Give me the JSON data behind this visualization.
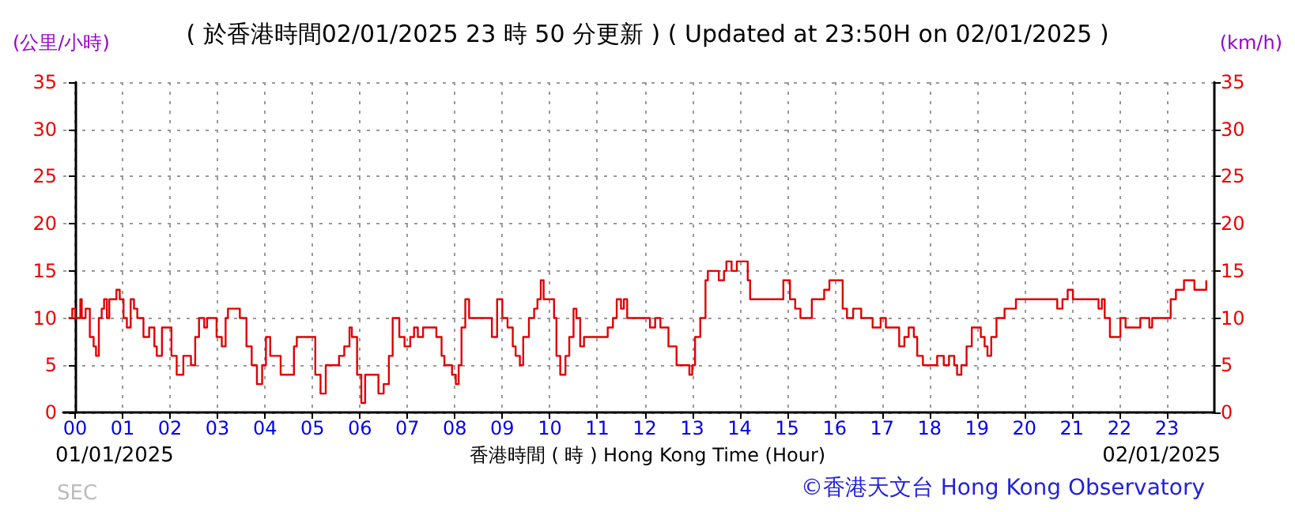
{
  "chart_data": {
    "type": "step",
    "title": "( 於香港時間02/01/2025 23 時 50 分更新 ) ( Updated at 23:50H on 02/01/2025 )",
    "xlabel": "香港時間 ( 時 ) Hong Kong Time (Hour)",
    "ylabel": "(公里/小時)",
    "y2label": "(km/h)",
    "annotations": [
      "01/01/2025",
      "02/01/2025",
      "SEC",
      "©香港天文台 Hong Kong Observatory"
    ],
    "series": [
      {
        "color": "#e00000",
        "x": [
          -0.14,
          -0.06,
          0,
          0.11,
          0.14,
          0.22,
          0.31,
          0.39,
          0.44,
          0.5,
          0.56,
          0.61,
          0.67,
          0.72,
          0.8,
          0.87,
          0.94,
          1.02,
          1.09,
          1.17,
          1.24,
          1.31,
          1.44,
          1.56,
          1.67,
          1.72,
          1.83,
          1.94,
          2.03,
          2.14,
          2.28,
          2.39,
          2.44,
          2.53,
          2.61,
          2.72,
          2.78,
          2.89,
          2.98,
          3.09,
          3.17,
          3.22,
          3.39,
          3.47,
          3.61,
          3.72,
          3.83,
          3.94,
          4.02,
          4.11,
          4.22,
          4.33,
          4.5,
          4.61,
          4.67,
          4.94,
          5.06,
          5.17,
          5.28,
          5.44,
          5.56,
          5.67,
          5.78,
          5.83,
          5.94,
          6.03,
          6.11,
          6.33,
          6.39,
          6.5,
          6.61,
          6.69,
          6.83,
          6.94,
          7.06,
          7.14,
          7.22,
          7.33,
          7.44,
          7.61,
          7.72,
          7.78,
          7.89,
          7.94,
          8.02,
          8.08,
          8.14,
          8.22,
          8.3,
          8.67,
          8.78,
          8.89,
          9,
          9.11,
          9.22,
          9.28,
          9.37,
          9.44,
          9.56,
          9.67,
          9.74,
          9.81,
          9.87,
          10.03,
          10.09,
          10.14,
          10.22,
          10.33,
          10.41,
          10.5,
          10.56,
          10.64,
          10.72,
          11.11,
          11.22,
          11.33,
          11.41,
          11.5,
          11.56,
          11.63,
          12,
          12.11,
          12.22,
          12.33,
          12.5,
          12.67,
          12.78,
          12.94,
          13,
          13.06,
          13.17,
          13.28,
          13.33,
          13.5,
          13.56,
          13.67,
          13.72,
          13.83,
          13.94,
          14.08,
          14.17,
          14.22,
          14.83,
          14.92,
          15.06,
          15.17,
          15.28,
          15.48,
          15.52,
          15.78,
          15.89,
          16.06,
          16.17,
          16.26,
          16.39,
          16.56,
          16.74,
          16.8,
          16.91,
          16.97,
          17.08,
          17.24,
          17.36,
          17.47,
          17.56,
          17.67,
          17.74,
          17.86,
          18.08,
          18.16,
          18.3,
          18.41,
          18.52,
          18.58,
          18.67,
          18.78,
          18.89,
          18.97,
          19.08,
          19.16,
          19.22,
          19.3,
          19.41,
          19.58,
          19.74,
          19.82,
          20.58,
          20.69,
          20.8,
          20.91,
          21.02,
          21.47,
          21.56,
          21.63,
          21.69,
          21.8,
          21.91,
          22.02,
          22.13,
          22.36,
          22.44,
          22.63,
          22.69,
          23.02,
          23.08,
          23.19,
          23.36,
          23.47,
          23.58,
          23.74,
          23.83
        ],
        "values": [
          10,
          11,
          10,
          12,
          10,
          11,
          8,
          7,
          6,
          10,
          11,
          12,
          10,
          12,
          12,
          13,
          12,
          10,
          9,
          12,
          11,
          10,
          8,
          9,
          7,
          6,
          9,
          9,
          6,
          4,
          6,
          6,
          5,
          8,
          10,
          9,
          10,
          10,
          8,
          7,
          10,
          11,
          11,
          10,
          7,
          5,
          3,
          5,
          8,
          6,
          6,
          4,
          4,
          7,
          8,
          8,
          4,
          2,
          5,
          5,
          6,
          7,
          9,
          8,
          4,
          1,
          4,
          4,
          2,
          3,
          6,
          10,
          8,
          7,
          8,
          9,
          8,
          9,
          9,
          8,
          6,
          5,
          5,
          4,
          3,
          5,
          9,
          12,
          10,
          10,
          8,
          12,
          10,
          9,
          7,
          6,
          5,
          8,
          10,
          11,
          12,
          14,
          12,
          12,
          10,
          6,
          4,
          6,
          8,
          11,
          10,
          7,
          8,
          8,
          9,
          10,
          12,
          11,
          12,
          10,
          10,
          9,
          10,
          9,
          7,
          5,
          5,
          4,
          5,
          8,
          10,
          14,
          15,
          15,
          14,
          15,
          16,
          15,
          16,
          16,
          14,
          12,
          12,
          14,
          12,
          11,
          10,
          10,
          12,
          13,
          14,
          14,
          11,
          10,
          11,
          10,
          10,
          9,
          9,
          10,
          9,
          9,
          7,
          8,
          9,
          8,
          6,
          5,
          5,
          6,
          5,
          6,
          5,
          4,
          5,
          7,
          9,
          9,
          8,
          7,
          6,
          8,
          10,
          11,
          11,
          12,
          12,
          11,
          12,
          13,
          12,
          12,
          11,
          12,
          10,
          8,
          8,
          10,
          9,
          9,
          10,
          9,
          10,
          10,
          12,
          13,
          14,
          14,
          13,
          13,
          14
        ]
      }
    ],
    "xlim": [
      -0.25,
      24
    ],
    "xticks": [
      {
        "value": 0,
        "label": "00"
      },
      {
        "value": 1,
        "label": "01"
      },
      {
        "value": 2,
        "label": "02"
      },
      {
        "value": 3,
        "label": "03"
      },
      {
        "value": 4,
        "label": "04"
      },
      {
        "value": 5,
        "label": "05"
      },
      {
        "value": 6,
        "label": "06"
      },
      {
        "value": 7,
        "label": "07"
      },
      {
        "value": 8,
        "label": "08"
      },
      {
        "value": 9,
        "label": "09"
      },
      {
        "value": 10,
        "label": "10"
      },
      {
        "value": 11,
        "label": "11"
      },
      {
        "value": 12,
        "label": "12"
      },
      {
        "value": 13,
        "label": "13"
      },
      {
        "value": 14,
        "label": "14"
      },
      {
        "value": 15,
        "label": "15"
      },
      {
        "value": 16,
        "label": "16"
      },
      {
        "value": 17,
        "label": "17"
      },
      {
        "value": 18,
        "label": "18"
      },
      {
        "value": 19,
        "label": "19"
      },
      {
        "value": 20,
        "label": "20"
      },
      {
        "value": 21,
        "label": "21"
      },
      {
        "value": 22,
        "label": "22"
      },
      {
        "value": 23,
        "label": "23"
      }
    ],
    "ylim": [
      0,
      35
    ],
    "yticks": [
      0,
      5,
      10,
      15,
      20,
      25,
      30,
      35
    ],
    "y2lim": [
      0,
      35
    ],
    "y2ticks": [
      0,
      5,
      10,
      15,
      20,
      25,
      30,
      35
    ],
    "grid": true,
    "marker": "none",
    "line_style": "solid"
  }
}
